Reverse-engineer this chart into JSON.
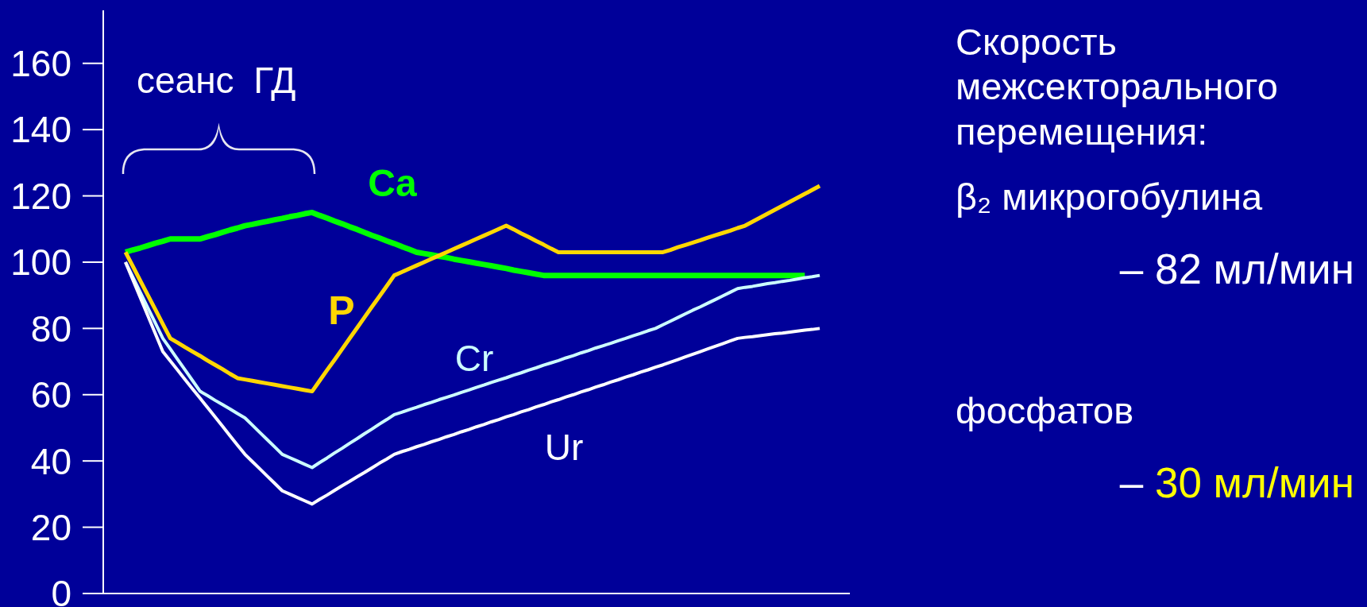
{
  "chart_data": {
    "type": "line",
    "annotations": [
      "сеанс ГД",
      "Скорость межсекторального перемещения:",
      "β₂ микрогобулина",
      "– 82 мл/мин",
      "фосфатов",
      "– 30 мл/мин"
    ],
    "categories": [
      null,
      null,
      null,
      null,
      null,
      null,
      null,
      null,
      null,
      null,
      null,
      null,
      null,
      null,
      null,
      null,
      null,
      null,
      null,
      null,
      null,
      null,
      null,
      null,
      null,
      null,
      null,
      null,
      null,
      null,
      null,
      null,
      null,
      null,
      null,
      null,
      null,
      null,
      null,
      null,
      null,
      null,
      null,
      null,
      null,
      null,
      null,
      null,
      null,
      null,
      null,
      null,
      null,
      null,
      null,
      null,
      null,
      null,
      null,
      null,
      null,
      null,
      null,
      null,
      null,
      null,
      null,
      null,
      null,
      null,
      null,
      null,
      null,
      null,
      null,
      null,
      null,
      null,
      null,
      null,
      null,
      null,
      null,
      null,
      null,
      null,
      null,
      null,
      null,
      null,
      null,
      null,
      null,
      null
    ],
    "ylim": [
      0,
      176
    ],
    "yticks": [
      0,
      20,
      40,
      60,
      80,
      100,
      120,
      140,
      160
    ],
    "tick_labels": "y",
    "marker": "none",
    "series": [
      {
        "name": "Ca",
        "color": "#00ff00",
        "values": [
          103,
          103.7,
          104.3,
          105,
          105.7,
          106.3,
          107,
          107,
          107,
          107,
          107,
          107.7,
          108.3,
          109,
          109.7,
          110.3,
          111,
          111.4,
          111.9,
          112.3,
          112.8,
          113.2,
          113.7,
          114.1,
          114.6,
          115,
          114.1,
          113.3,
          112.4,
          111.6,
          110.7,
          109.9,
          109,
          108.1,
          107.3,
          106.4,
          105.6,
          104.7,
          103.9,
          103,
          102.6,
          102.2,
          101.8,
          101.4,
          100.9,
          100.5,
          100.1,
          99.7,
          99.3,
          98.9,
          98.5,
          98.1,
          97.6,
          97.2,
          96.8,
          96.4,
          96,
          96,
          96,
          96,
          96,
          96,
          96,
          96,
          96,
          96,
          96,
          96,
          96,
          96,
          96,
          96,
          96,
          96,
          96,
          96,
          96,
          96,
          96,
          96,
          96,
          96,
          96,
          96,
          96,
          96,
          96,
          96,
          96,
          96,
          96,
          96,
          null,
          null
        ]
      },
      {
        "name": "P",
        "color": "#ffd700",
        "values": [
          103,
          98.7,
          94.3,
          90,
          85.7,
          81.3,
          77,
          75.7,
          74.3,
          73,
          71.7,
          70.3,
          69,
          67.7,
          66.3,
          65,
          64.6,
          64.2,
          63.8,
          63.4,
          63,
          62.6,
          62.2,
          61.8,
          61.4,
          61,
          64.2,
          67.4,
          70.5,
          73.7,
          76.9,
          80.1,
          83.3,
          86.5,
          89.6,
          92.8,
          96,
          97,
          98,
          99,
          100,
          101,
          102,
          103,
          104,
          105,
          106,
          107,
          108,
          109,
          110,
          111,
          109.9,
          108.7,
          107.6,
          106.4,
          105.3,
          104.1,
          103,
          103,
          103,
          103,
          103,
          103,
          103,
          103,
          103,
          103,
          103,
          103,
          103,
          103,
          103,
          103.7,
          104.5,
          105.2,
          105.9,
          106.6,
          107.4,
          108.1,
          108.8,
          109.5,
          110.3,
          111,
          112.2,
          113.4,
          114.6,
          115.8,
          117,
          118.2,
          119.4,
          120.6,
          121.8,
          123
        ]
      },
      {
        "name": "Cr",
        "color": "#ccffff",
        "values": [
          100,
          95.4,
          90.8,
          86.2,
          81.6,
          77,
          73.8,
          70.6,
          67.4,
          64.2,
          61,
          59.7,
          58.3,
          57,
          55.7,
          54.3,
          53,
          50.8,
          48.6,
          46.4,
          44.2,
          42,
          41,
          40,
          39,
          38,
          39.5,
          40.9,
          42.4,
          43.8,
          45.3,
          46.7,
          48.2,
          49.6,
          51.1,
          52.5,
          54,
          54.7,
          55.5,
          56.2,
          57,
          57.7,
          58.5,
          59.2,
          59.9,
          60.7,
          61.4,
          62.2,
          62.9,
          63.7,
          64.4,
          65.1,
          65.9,
          66.6,
          67.4,
          68.1,
          68.9,
          69.6,
          70.3,
          71.1,
          71.8,
          72.6,
          73.3,
          74.1,
          74.8,
          75.5,
          76.3,
          77,
          77.8,
          78.5,
          79.3,
          80,
          81.1,
          82.2,
          83.3,
          84.4,
          85.5,
          86.5,
          87.6,
          88.7,
          89.8,
          90.9,
          92,
          92.4,
          92.7,
          93.1,
          93.5,
          93.8,
          94.2,
          94.5,
          94.9,
          95.3,
          95.6,
          96
        ]
      },
      {
        "name": "Ur",
        "color": "#ffffff",
        "values": [
          100,
          94.6,
          89.2,
          83.8,
          78.4,
          73,
          70.2,
          67.4,
          64.5,
          61.7,
          58.9,
          56.1,
          53.3,
          50.5,
          47.6,
          44.8,
          42,
          39.8,
          37.6,
          35.4,
          33.2,
          31,
          30,
          29,
          28,
          27,
          28.4,
          29.7,
          31.1,
          32.5,
          33.8,
          35.2,
          36.5,
          37.9,
          39.3,
          40.6,
          42,
          42.8,
          43.5,
          44.3,
          45,
          45.8,
          46.5,
          47.3,
          48,
          48.8,
          49.5,
          50.3,
          51,
          51.8,
          52.5,
          53.3,
          54,
          54.8,
          55.5,
          56.3,
          57,
          57.8,
          58.5,
          59.3,
          60,
          60.8,
          61.5,
          62.3,
          63,
          63.8,
          64.5,
          65.3,
          66,
          66.8,
          67.5,
          68.3,
          69,
          69.8,
          70.6,
          71.4,
          72.2,
          73,
          73.8,
          74.6,
          75.4,
          76.2,
          77,
          77.3,
          77.5,
          77.8,
          78.1,
          78.4,
          78.6,
          78.9,
          79.2,
          79.5,
          79.7,
          80
        ]
      }
    ]
  }
}
